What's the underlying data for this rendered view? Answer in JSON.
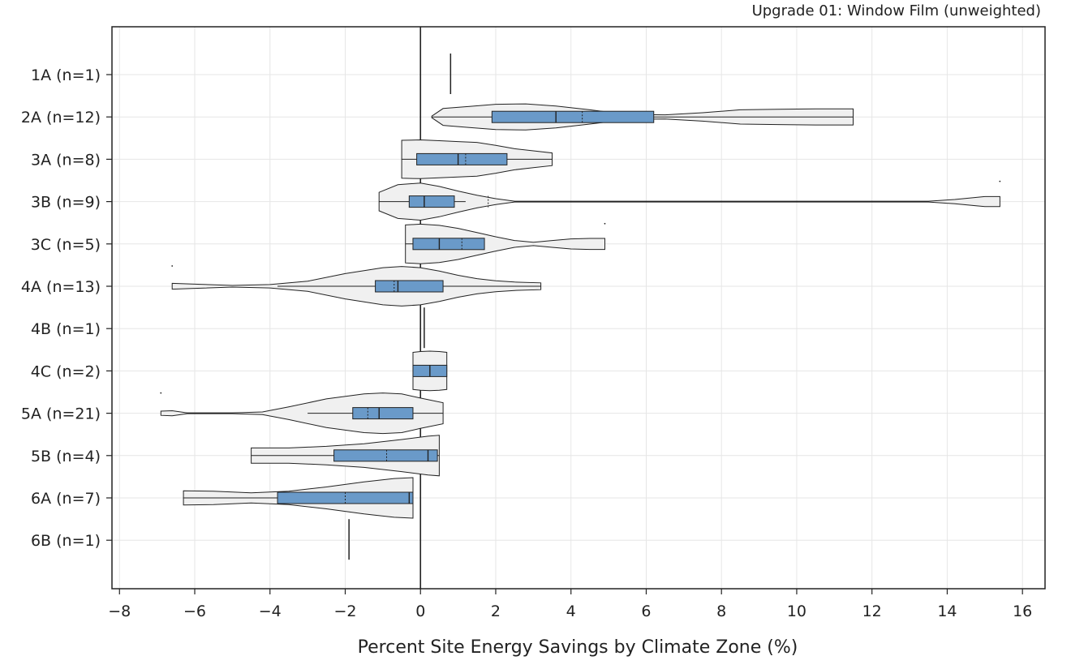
{
  "chart_data": {
    "type": "violin",
    "title": "Upgrade 01: Window Film (unweighted)",
    "xlabel": "Percent Site Energy Savings by Climate Zone (%)",
    "ylabel": "",
    "xlim": [
      -8.2,
      16.6
    ],
    "xticks": [
      -8,
      -6,
      -4,
      -2,
      0,
      2,
      4,
      6,
      8,
      10,
      12,
      14,
      16
    ],
    "xtick_labels": [
      "−8",
      "−6",
      "−4",
      "−2",
      "0",
      "2",
      "4",
      "6",
      "8",
      "10",
      "12",
      "14",
      "16"
    ],
    "grid": true,
    "reference_line_x": 0,
    "colors": {
      "violin_fill": "#f0f0f0",
      "box_fill": "#6a9ac9",
      "outline": "#222222",
      "grid": "#e6e6e6"
    },
    "categories": [
      "1A (n=1)",
      "2A (n=12)",
      "3A (n=8)",
      "3B (n=9)",
      "3C (n=5)",
      "4A (n=13)",
      "4B (n=1)",
      "4C (n=2)",
      "5A (n=21)",
      "5B (n=4)",
      "6A (n=7)",
      "6B (n=1)"
    ],
    "series": [
      {
        "zone": "1A",
        "n": 1,
        "min": 0.8,
        "max": 0.8,
        "median": 0.8,
        "single_value": 0.8
      },
      {
        "zone": "2A",
        "n": 12,
        "min": 0.3,
        "max": 11.5,
        "q1": 1.9,
        "median": 3.6,
        "mean": 4.3,
        "q3": 6.2,
        "whisker_low": 0.3,
        "whisker_high": 11.5,
        "density": [
          [
            0.3,
            0.02
          ],
          [
            0.6,
            0.2
          ],
          [
            1.3,
            0.25
          ],
          [
            2.0,
            0.3
          ],
          [
            2.8,
            0.31
          ],
          [
            3.6,
            0.26
          ],
          [
            4.5,
            0.17
          ],
          [
            5.5,
            0.06
          ],
          [
            6.5,
            0.05
          ],
          [
            7.5,
            0.1
          ],
          [
            8.5,
            0.17
          ],
          [
            9.5,
            0.18
          ],
          [
            10.5,
            0.19
          ],
          [
            11.5,
            0.19
          ]
        ]
      },
      {
        "zone": "3A",
        "n": 8,
        "min": -0.5,
        "max": 3.5,
        "q1": -0.1,
        "median": 1.0,
        "mean": 1.2,
        "q3": 2.3,
        "whisker_low": -0.5,
        "whisker_high": 3.5,
        "density": [
          [
            -0.5,
            0.45
          ],
          [
            0.0,
            0.46
          ],
          [
            0.5,
            0.44
          ],
          [
            1.0,
            0.42
          ],
          [
            1.5,
            0.4
          ],
          [
            2.0,
            0.33
          ],
          [
            2.5,
            0.25
          ],
          [
            3.0,
            0.2
          ],
          [
            3.5,
            0.15
          ]
        ]
      },
      {
        "zone": "3B",
        "n": 9,
        "min": -1.1,
        "max": 15.4,
        "q1": -0.3,
        "median": 0.1,
        "mean": 1.8,
        "q3": 0.9,
        "whisker_low": -1.1,
        "whisker_high": 1.2,
        "outliers": [
          15.4
        ],
        "density": [
          [
            -1.1,
            0.22
          ],
          [
            -0.6,
            0.4
          ],
          [
            0.0,
            0.44
          ],
          [
            0.5,
            0.36
          ],
          [
            1.0,
            0.25
          ],
          [
            1.5,
            0.15
          ],
          [
            2.0,
            0.07
          ],
          [
            2.5,
            0.01
          ],
          [
            13.5,
            0.01
          ],
          [
            14.2,
            0.05
          ],
          [
            15.0,
            0.12
          ],
          [
            15.4,
            0.12
          ]
        ]
      },
      {
        "zone": "3C",
        "n": 5,
        "min": -0.4,
        "max": 4.9,
        "q1": -0.2,
        "median": 0.5,
        "mean": 1.1,
        "q3": 1.7,
        "whisker_low": -0.4,
        "whisker_high": 1.7,
        "outliers": [
          4.9
        ],
        "density": [
          [
            -0.4,
            0.45
          ],
          [
            0.0,
            0.47
          ],
          [
            0.5,
            0.44
          ],
          [
            1.0,
            0.37
          ],
          [
            1.5,
            0.27
          ],
          [
            2.0,
            0.17
          ],
          [
            2.5,
            0.08
          ],
          [
            3.0,
            0.04
          ],
          [
            3.5,
            0.08
          ],
          [
            4.0,
            0.12
          ],
          [
            4.5,
            0.13
          ],
          [
            4.9,
            0.13
          ]
        ]
      },
      {
        "zone": "4A",
        "n": 13,
        "min": -6.6,
        "max": 3.2,
        "q1": -1.2,
        "median": -0.6,
        "mean": -0.7,
        "q3": 0.6,
        "whisker_low": -3.8,
        "whisker_high": 3.2,
        "outliers": [
          -6.6
        ],
        "density": [
          [
            -6.6,
            0.07
          ],
          [
            -6.0,
            0.05
          ],
          [
            -5.0,
            0.02
          ],
          [
            -4.0,
            0.04
          ],
          [
            -3.0,
            0.12
          ],
          [
            -2.0,
            0.3
          ],
          [
            -1.0,
            0.44
          ],
          [
            -0.5,
            0.47
          ],
          [
            0.0,
            0.44
          ],
          [
            0.5,
            0.36
          ],
          [
            1.0,
            0.26
          ],
          [
            1.5,
            0.18
          ],
          [
            2.0,
            0.13
          ],
          [
            2.5,
            0.1
          ],
          [
            3.2,
            0.08
          ]
        ]
      },
      {
        "zone": "4B",
        "n": 1,
        "min": 0.1,
        "max": 0.1,
        "median": 0.1,
        "single_value": 0.1
      },
      {
        "zone": "4C",
        "n": 2,
        "min": -0.2,
        "max": 0.7,
        "q1": -0.2,
        "median": 0.25,
        "q3": 0.7,
        "whisker_low": -0.2,
        "whisker_high": 0.7,
        "density": [
          [
            -0.2,
            0.44
          ],
          [
            0.0,
            0.46
          ],
          [
            0.25,
            0.47
          ],
          [
            0.5,
            0.46
          ],
          [
            0.7,
            0.44
          ]
        ]
      },
      {
        "zone": "5A",
        "n": 21,
        "min": -6.9,
        "max": 0.6,
        "q1": -1.8,
        "median": -1.1,
        "mean": -1.4,
        "q3": -0.2,
        "whisker_low": -3.0,
        "whisker_high": 0.6,
        "outliers": [
          -6.9
        ],
        "density": [
          [
            -6.9,
            0.05
          ],
          [
            -6.6,
            0.06
          ],
          [
            -6.2,
            0.01
          ],
          [
            -5.0,
            0.01
          ],
          [
            -4.2,
            0.03
          ],
          [
            -3.5,
            0.15
          ],
          [
            -2.5,
            0.34
          ],
          [
            -1.5,
            0.46
          ],
          [
            -1.0,
            0.48
          ],
          [
            -0.5,
            0.46
          ],
          [
            0.0,
            0.36
          ],
          [
            0.6,
            0.25
          ]
        ]
      },
      {
        "zone": "5B",
        "n": 4,
        "min": -4.5,
        "max": 0.5,
        "q1": -2.3,
        "median": 0.2,
        "mean": -0.9,
        "q3": 0.45,
        "whisker_low": -4.5,
        "whisker_high": 0.5,
        "density": [
          [
            -4.5,
            0.18
          ],
          [
            -3.5,
            0.18
          ],
          [
            -2.5,
            0.22
          ],
          [
            -1.5,
            0.28
          ],
          [
            -0.5,
            0.38
          ],
          [
            0.2,
            0.46
          ],
          [
            0.5,
            0.48
          ]
        ]
      },
      {
        "zone": "6A",
        "n": 7,
        "min": -6.3,
        "max": -0.2,
        "q1": -3.8,
        "median": -0.3,
        "mean": -2.0,
        "q3": -0.2,
        "whisker_low": -6.3,
        "whisker_high": -0.2,
        "density": [
          [
            -6.3,
            0.17
          ],
          [
            -5.5,
            0.16
          ],
          [
            -4.5,
            0.12
          ],
          [
            -3.5,
            0.16
          ],
          [
            -2.5,
            0.26
          ],
          [
            -1.5,
            0.38
          ],
          [
            -0.7,
            0.46
          ],
          [
            -0.2,
            0.48
          ]
        ]
      },
      {
        "zone": "6B",
        "n": 1,
        "min": -1.9,
        "max": -1.9,
        "median": -1.9,
        "single_value": -1.9
      }
    ]
  }
}
